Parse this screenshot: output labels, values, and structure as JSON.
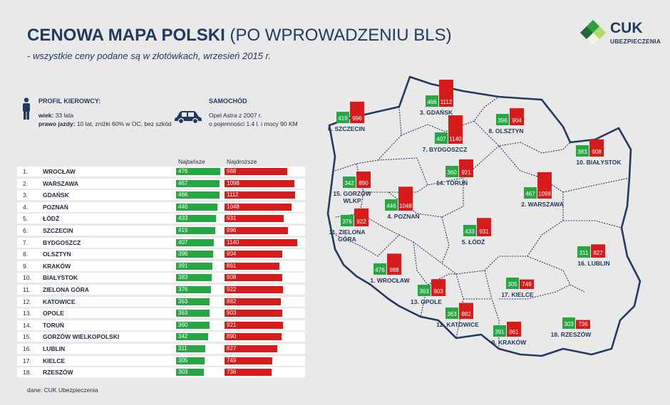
{
  "header": {
    "title_bold": "CENOWA MAPA POLSKI",
    "title_light": "(PO WPROWADZENIU BLS)",
    "subtitle": "- wszystkie ceny podane są w złotówkach, wrzesień 2015 r."
  },
  "logo": {
    "brand": "CUK",
    "sub": "UBEZPIECZENIA",
    "colors": [
      "#2e9e3e",
      "#8dc63f",
      "#1b6b3a"
    ]
  },
  "profile": {
    "heading": "PROFIL KIEROWCY:",
    "age_label": "wiek:",
    "age_value": "33 lata",
    "license_label": "prawo jazdy:",
    "license_value": "10 lat, zniżki 60% w OC, bez szkód",
    "icon": "person-icon"
  },
  "car": {
    "heading": "SAMOCHÓD",
    "line1": "Opel Astra z 2007 r.",
    "line2": "o pojemności 1.4 l. i mocy 90 KM",
    "icon": "car-icon"
  },
  "table": {
    "col_min": "Najtańsze",
    "col_max": "Najdroższe"
  },
  "chart_data": {
    "type": "bar",
    "series_colors": {
      "min": "#27a744",
      "max": "#d71a1a"
    },
    "rows": [
      {
        "num": "1.",
        "city": "WROCŁAW",
        "min": 476,
        "max": 988
      },
      {
        "num": "2.",
        "city": "WARSZAWA",
        "min": 467,
        "max": 1098
      },
      {
        "num": "3.",
        "city": "GDAŃSK",
        "min": 466,
        "max": 1112
      },
      {
        "num": "4.",
        "city": "POZNAŃ",
        "min": 446,
        "max": 1048
      },
      {
        "num": "5.",
        "city": "ŁÓDŹ",
        "min": 433,
        "max": 931
      },
      {
        "num": "6.",
        "city": "SZCZECIN",
        "min": 419,
        "max": 996
      },
      {
        "num": "7.",
        "city": "BYDGOSZCZ",
        "min": 407,
        "max": 1140
      },
      {
        "num": "8.",
        "city": "OLSZTYN",
        "min": 396,
        "max": 904
      },
      {
        "num": "9.",
        "city": "KRAKÓW",
        "min": 391,
        "max": 861
      },
      {
        "num": "10.",
        "city": "BIAŁYSTOK",
        "min": 383,
        "max": 908
      },
      {
        "num": "11.",
        "city": "ZIELONA GÓRA",
        "min": 376,
        "max": 922
      },
      {
        "num": "12.",
        "city": "KATOWICE",
        "min": 363,
        "max": 882
      },
      {
        "num": "13.",
        "city": "OPOLE",
        "min": 363,
        "max": 903
      },
      {
        "num": "14.",
        "city": "TORUŃ",
        "min": 360,
        "max": 921
      },
      {
        "num": "15.",
        "city": "GORZÓW WIELKOPOLSKI",
        "min": 342,
        "max": 890
      },
      {
        "num": "16.",
        "city": "LUBLIN",
        "min": 311,
        "max": 827
      },
      {
        "num": "17.",
        "city": "KIELCE",
        "min": 305,
        "max": 749
      },
      {
        "num": "18.",
        "city": "RZESZÓW",
        "min": 303,
        "max": 736
      }
    ],
    "map_labels": [
      {
        "lines": [
          "3. GDAŃSK"
        ],
        "min": 466,
        "max": 1112
      },
      {
        "lines": [
          "6. SZCZECIN"
        ],
        "min": 419,
        "max": 996
      },
      {
        "lines": [
          "8. OLSZTYN"
        ],
        "min": 396,
        "max": 904
      },
      {
        "lines": [
          "7. BYDGOSZCZ"
        ],
        "min": 407,
        "max": 1140
      },
      {
        "lines": [
          "10. BIAŁYSTOK"
        ],
        "min": 383,
        "max": 908
      },
      {
        "lines": [
          "14. TORUŃ"
        ],
        "min": 360,
        "max": 921
      },
      {
        "lines": [
          "15. GORZÓW",
          "WLKP"
        ],
        "min": 342,
        "max": 890
      },
      {
        "lines": [
          "2. WARSZAWA"
        ],
        "min": 467,
        "max": 1098
      },
      {
        "lines": [
          "4. POZNAŃ"
        ],
        "min": 446,
        "max": 1048
      },
      {
        "lines": [
          "11. ZIELONA",
          "GÓRA"
        ],
        "min": 376,
        "max": 922
      },
      {
        "lines": [
          "5. ŁÓDŹ"
        ],
        "min": 433,
        "max": 931
      },
      {
        "lines": [
          "16. LUBLIN"
        ],
        "min": 311,
        "max": 827
      },
      {
        "lines": [
          "1. WROCŁAW"
        ],
        "min": 476,
        "max": 988
      },
      {
        "lines": [
          "13. OPOLE"
        ],
        "min": 363,
        "max": 903
      },
      {
        "lines": [
          "17. KIELCE"
        ],
        "min": 305,
        "max": 749
      },
      {
        "lines": [
          "12. KATOWICE"
        ],
        "min": 363,
        "max": 882
      },
      {
        "lines": [
          "18. RZESZÓW"
        ],
        "min": 303,
        "max": 736
      },
      {
        "lines": [
          "9. KRAKÓW"
        ],
        "min": 391,
        "max": 861
      }
    ]
  },
  "source": "dane: CUK Ubezpieczenia"
}
